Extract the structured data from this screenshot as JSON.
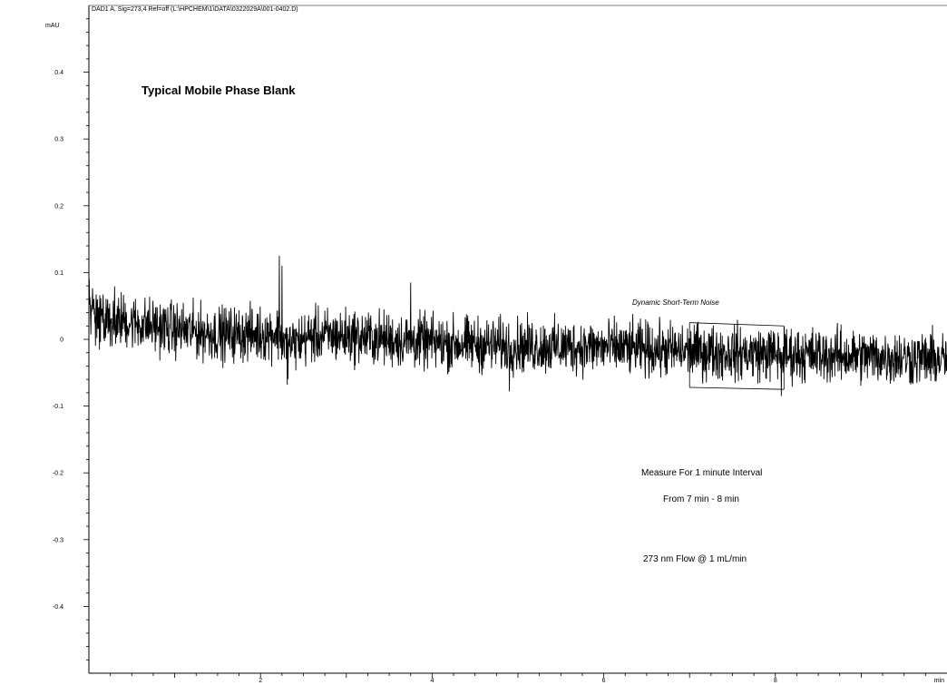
{
  "chart_data": {
    "type": "line",
    "header": "DAD1 A, Sig=273,4 Ref=off (L:\\HPCHEM\\1\\DATA\\0322029A\\001-0402.D)",
    "title": "Typical Mobile Phase Blank",
    "xlabel": "min",
    "ylabel": "mAU",
    "xlim": [
      0,
      10
    ],
    "ylim": [
      -0.5,
      0.5
    ],
    "x_ticks": [
      2,
      4,
      6,
      8
    ],
    "x_tick_labels": [
      "2",
      "4",
      "6",
      "8"
    ],
    "y_ticks": [
      0.4,
      0.3,
      0.2,
      0.1,
      0,
      -0.1,
      -0.2,
      -0.3,
      -0.4
    ],
    "y_tick_labels": [
      "0.4",
      "0.3",
      "0.2",
      "0.1",
      "0",
      "-0.1",
      "-0.2",
      "-0.3",
      "-0.4"
    ],
    "grid": false,
    "series": [
      {
        "baseline_points": [
          [
            0.0,
            0.045
          ],
          [
            0.5,
            0.025
          ],
          [
            1.0,
            0.015
          ],
          [
            1.5,
            0.008
          ],
          [
            2.0,
            0.008
          ],
          [
            2.2,
            0.01
          ],
          [
            2.3,
            -0.01
          ],
          [
            2.6,
            0.005
          ],
          [
            3.0,
            0.005
          ],
          [
            4.0,
            -0.005
          ],
          [
            5.0,
            -0.01
          ],
          [
            6.0,
            -0.012
          ],
          [
            7.0,
            -0.018
          ],
          [
            8.0,
            -0.022
          ],
          [
            9.0,
            -0.025
          ],
          [
            10.0,
            -0.03
          ]
        ],
        "noise_amplitude": 0.025,
        "features": [
          {
            "x": 2.22,
            "y": 0.125
          },
          {
            "x": 2.25,
            "y": 0.11
          },
          {
            "x": 2.31,
            "y": -0.068
          },
          {
            "x": 3.75,
            "y": 0.085
          },
          {
            "x": 4.9,
            "y": -0.078
          },
          {
            "x": 8.07,
            "y": -0.085
          }
        ]
      }
    ],
    "noise_box": {
      "x_start": 7.0,
      "x_end": 8.1,
      "upper": [
        0.025,
        0.02
      ],
      "lower": [
        -0.072,
        -0.075
      ],
      "label": "Dynamic Short-Term Noise"
    },
    "annotations": [
      "Measure For 1 minute Interval",
      "From 7 min - 8 min",
      "273 nm Flow @ 1 mL/min"
    ]
  }
}
